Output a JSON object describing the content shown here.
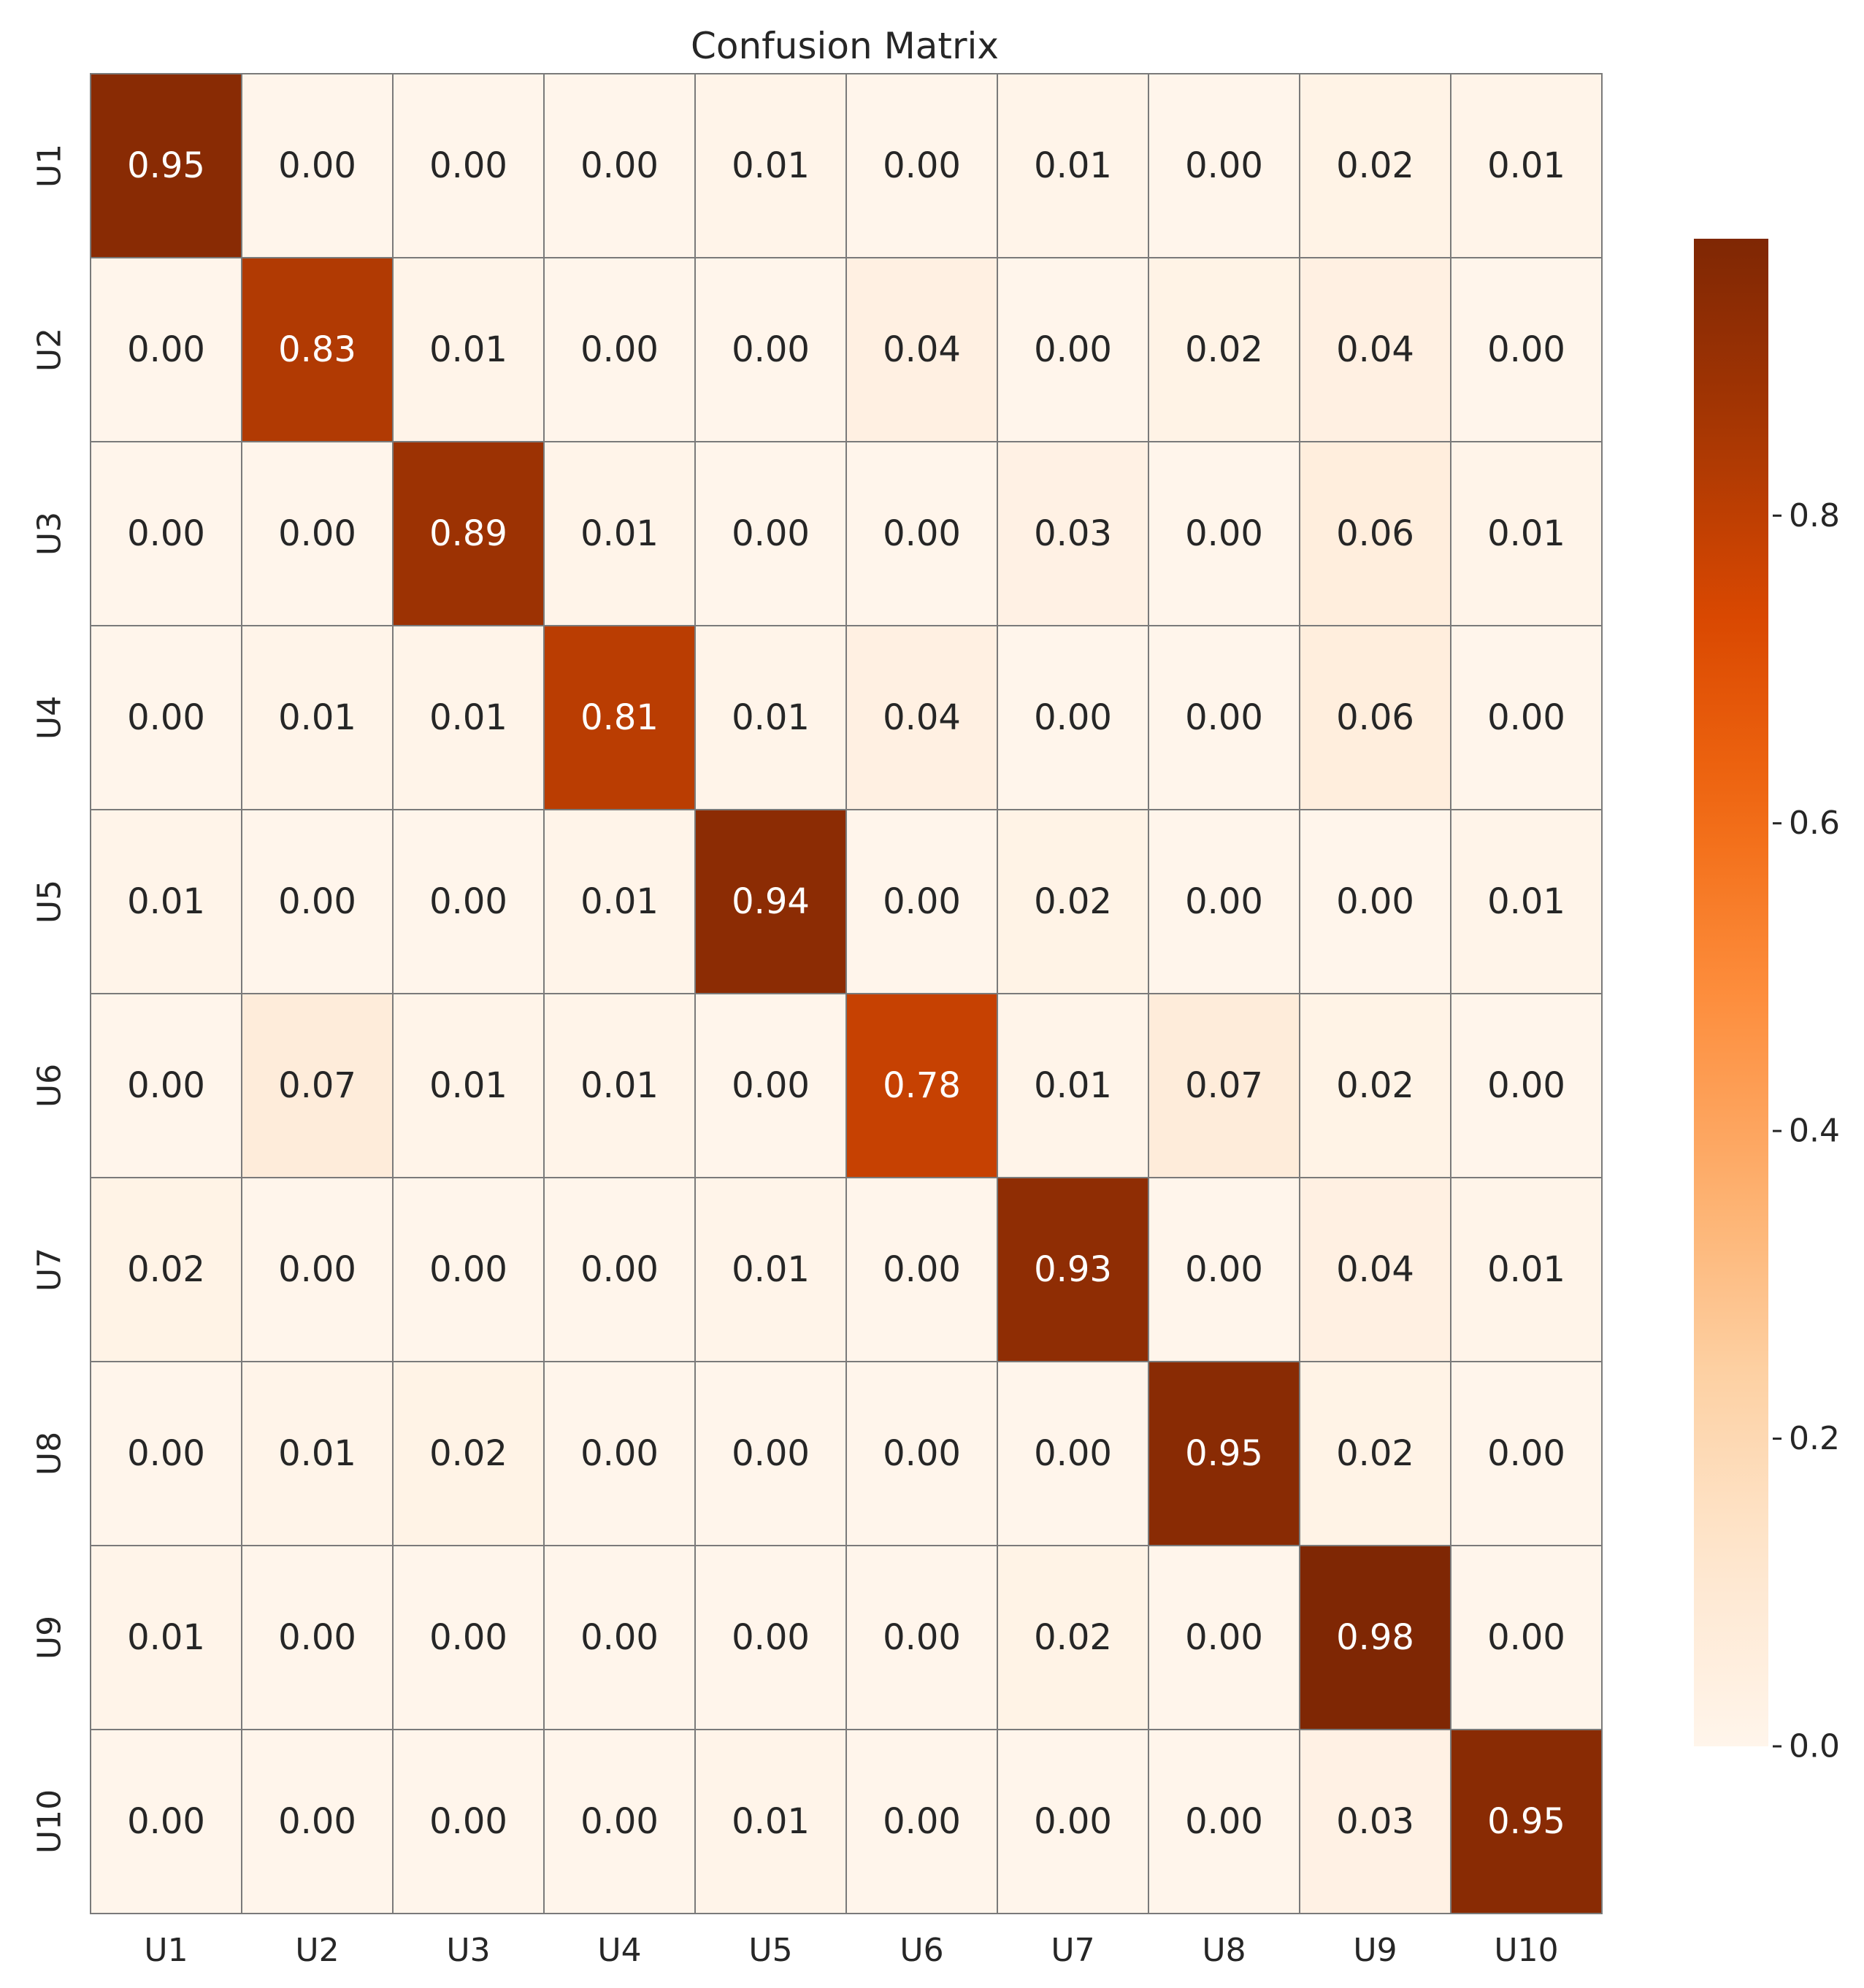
{
  "chart_data": {
    "type": "heatmap",
    "title": "Confusion Matrix",
    "xlabel": "",
    "ylabel": "",
    "x_categories": [
      "U1",
      "U2",
      "U3",
      "U4",
      "U5",
      "U6",
      "U7",
      "U8",
      "U9",
      "U10"
    ],
    "y_categories": [
      "U1",
      "U2",
      "U3",
      "U4",
      "U5",
      "U6",
      "U7",
      "U8",
      "U9",
      "U10"
    ],
    "values": [
      [
        0.95,
        0.0,
        0.0,
        0.0,
        0.01,
        0.0,
        0.01,
        0.0,
        0.02,
        0.01
      ],
      [
        0.0,
        0.83,
        0.01,
        0.0,
        0.0,
        0.04,
        0.0,
        0.02,
        0.04,
        0.0
      ],
      [
        0.0,
        0.0,
        0.89,
        0.01,
        0.0,
        0.0,
        0.03,
        0.0,
        0.06,
        0.01
      ],
      [
        0.0,
        0.01,
        0.01,
        0.81,
        0.01,
        0.04,
        0.0,
        0.0,
        0.06,
        0.0
      ],
      [
        0.01,
        0.0,
        0.0,
        0.01,
        0.94,
        0.0,
        0.02,
        0.0,
        0.0,
        0.01
      ],
      [
        0.0,
        0.07,
        0.01,
        0.01,
        0.0,
        0.78,
        0.01,
        0.07,
        0.02,
        0.0
      ],
      [
        0.02,
        0.0,
        0.0,
        0.0,
        0.01,
        0.0,
        0.93,
        0.0,
        0.04,
        0.01
      ],
      [
        0.0,
        0.01,
        0.02,
        0.0,
        0.0,
        0.0,
        0.0,
        0.95,
        0.02,
        0.0
      ],
      [
        0.01,
        0.0,
        0.0,
        0.0,
        0.0,
        0.0,
        0.02,
        0.0,
        0.98,
        0.0
      ],
      [
        0.0,
        0.0,
        0.0,
        0.0,
        0.01,
        0.0,
        0.0,
        0.0,
        0.03,
        0.95
      ]
    ],
    "value_format": "0.00",
    "colormap": "Oranges",
    "color_range": [
      0.0,
      0.98
    ],
    "colorbar": {
      "ticks": [
        0.0,
        0.2,
        0.4,
        0.6,
        0.8
      ],
      "tick_labels": [
        "0.0",
        "0.2",
        "0.4",
        "0.6",
        "0.8"
      ],
      "placement": "right"
    },
    "grid": true,
    "colors": {
      "cell_border": "#7a7a7a",
      "text_dark": "#262626",
      "text_light": "#ffffff"
    }
  }
}
